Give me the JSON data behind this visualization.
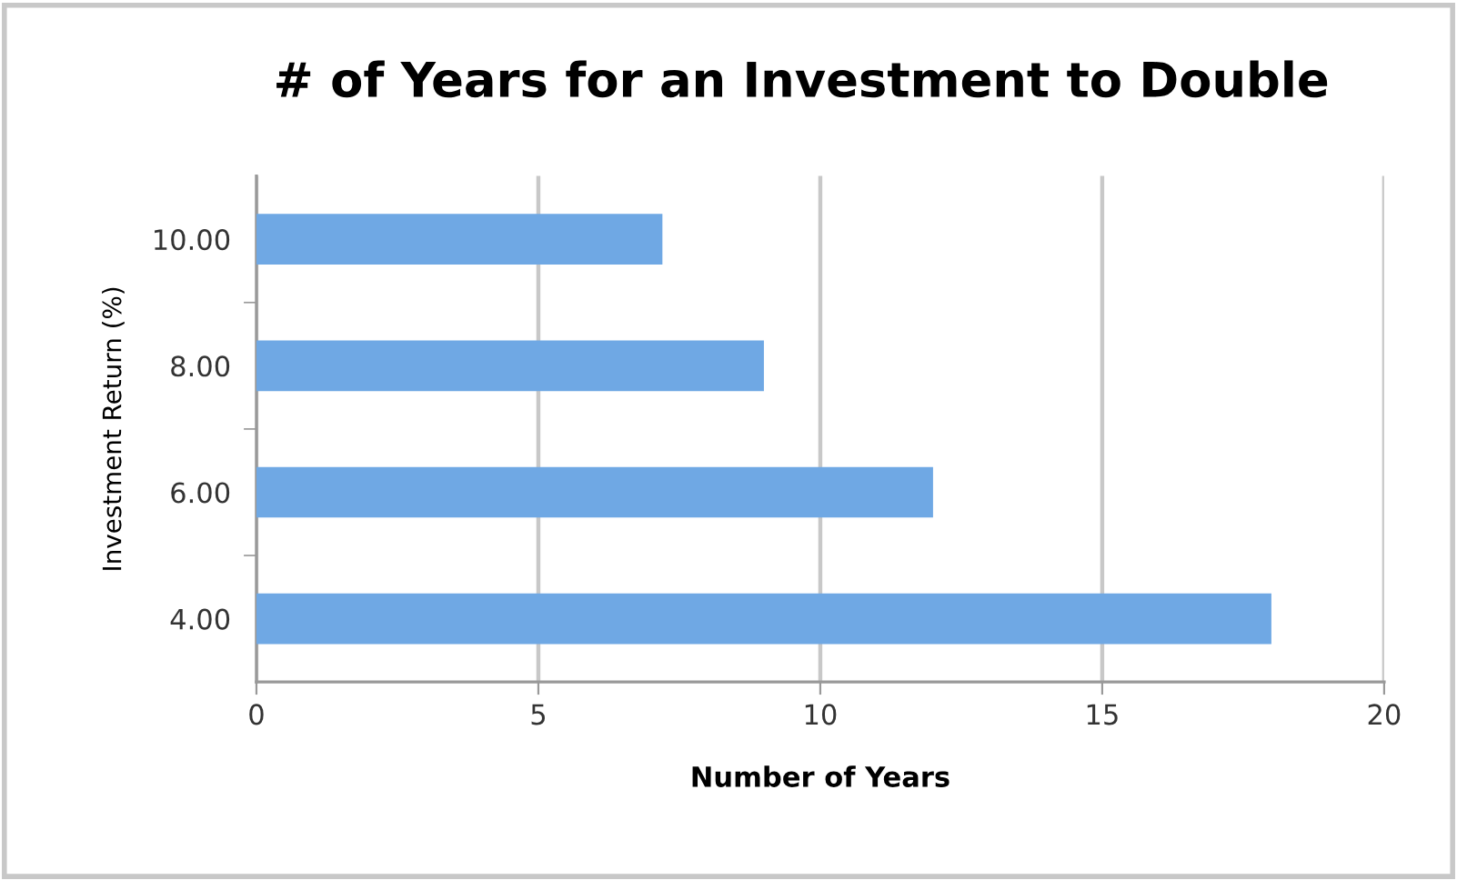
{
  "chart_data": {
    "type": "bar",
    "orientation": "horizontal",
    "title": "# of Years for an Investment to Double",
    "xlabel": "Number of Years",
    "ylabel": "Investment Return (%)",
    "categories": [
      "10.00",
      "8.00",
      "6.00",
      "4.00"
    ],
    "values": [
      7.2,
      9,
      12,
      18
    ],
    "color": "#6fa8e4",
    "xlim": [
      0,
      20
    ],
    "xticks": [
      0,
      5,
      10,
      15,
      20
    ],
    "grid": "x",
    "legend": false
  }
}
